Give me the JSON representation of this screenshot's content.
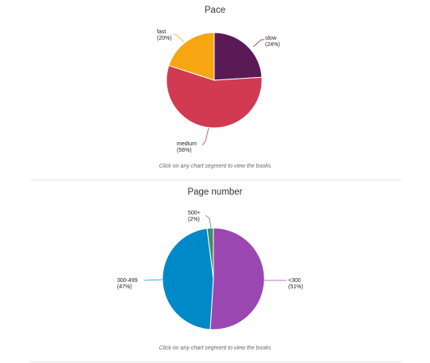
{
  "chart_data": [
    {
      "type": "pie",
      "title": "Pace",
      "hint": "Click on any chart segment to view the books",
      "slices": [
        {
          "label": "slow",
          "pct_label": "(24%)",
          "value": 24,
          "color": "#5a1a55"
        },
        {
          "label": "medium",
          "pct_label": "(56%)",
          "value": 56,
          "color": "#d23a52"
        },
        {
          "label": "fast",
          "pct_label": "(20%)",
          "value": 20,
          "color": "#f8a512"
        }
      ]
    },
    {
      "type": "pie",
      "title": "Page number",
      "hint": "Click on any chart segment to view the books",
      "slices": [
        {
          "label": "<300",
          "pct_label": "(51%)",
          "value": 51,
          "color": "#9a47b2"
        },
        {
          "label": "300-499",
          "pct_label": "(47%)",
          "value": 47,
          "color": "#0089c9"
        },
        {
          "label": "500+",
          "pct_label": "(2%)",
          "value": 2,
          "color": "#3f8f68"
        }
      ]
    }
  ]
}
